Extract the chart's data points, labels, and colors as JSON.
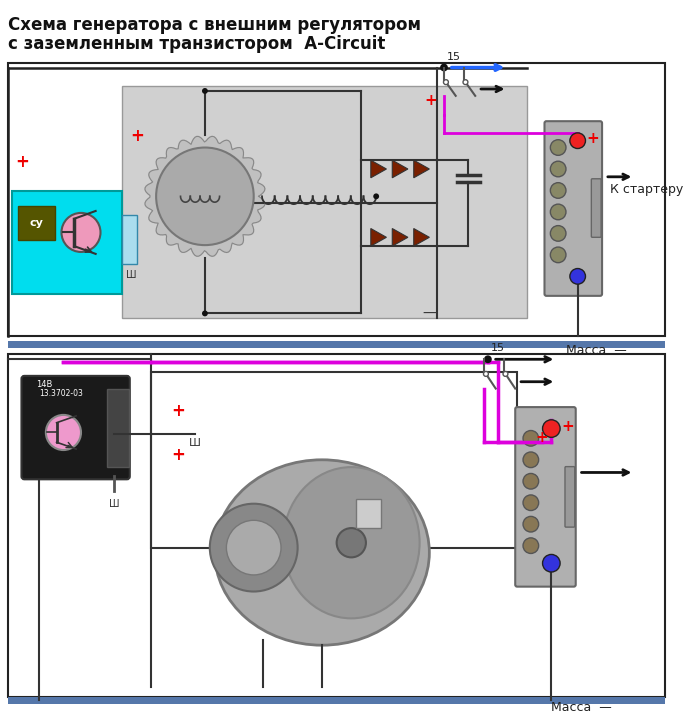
{
  "title_line1": "Схема генератора с внешним регулятором",
  "title_line2": "с заземленным транзистором  A-Circuit",
  "title_fontsize": 12,
  "bg_color": "#ffffff",
  "gray_box_color": "#d0d0d0",
  "cyan_box_color": "#00ddee",
  "blue_bar_color": "#5577aa",
  "magenta_wire": "#dd00dd",
  "blue_arrow": "#2266ff",
  "red_plus": "#ee0000",
  "diode_color": "#7a2000",
  "label_massa": "Масса",
  "label_starter": "К стартеру",
  "label_15": "15",
  "label_sh": "Ш",
  "label_su": "су"
}
